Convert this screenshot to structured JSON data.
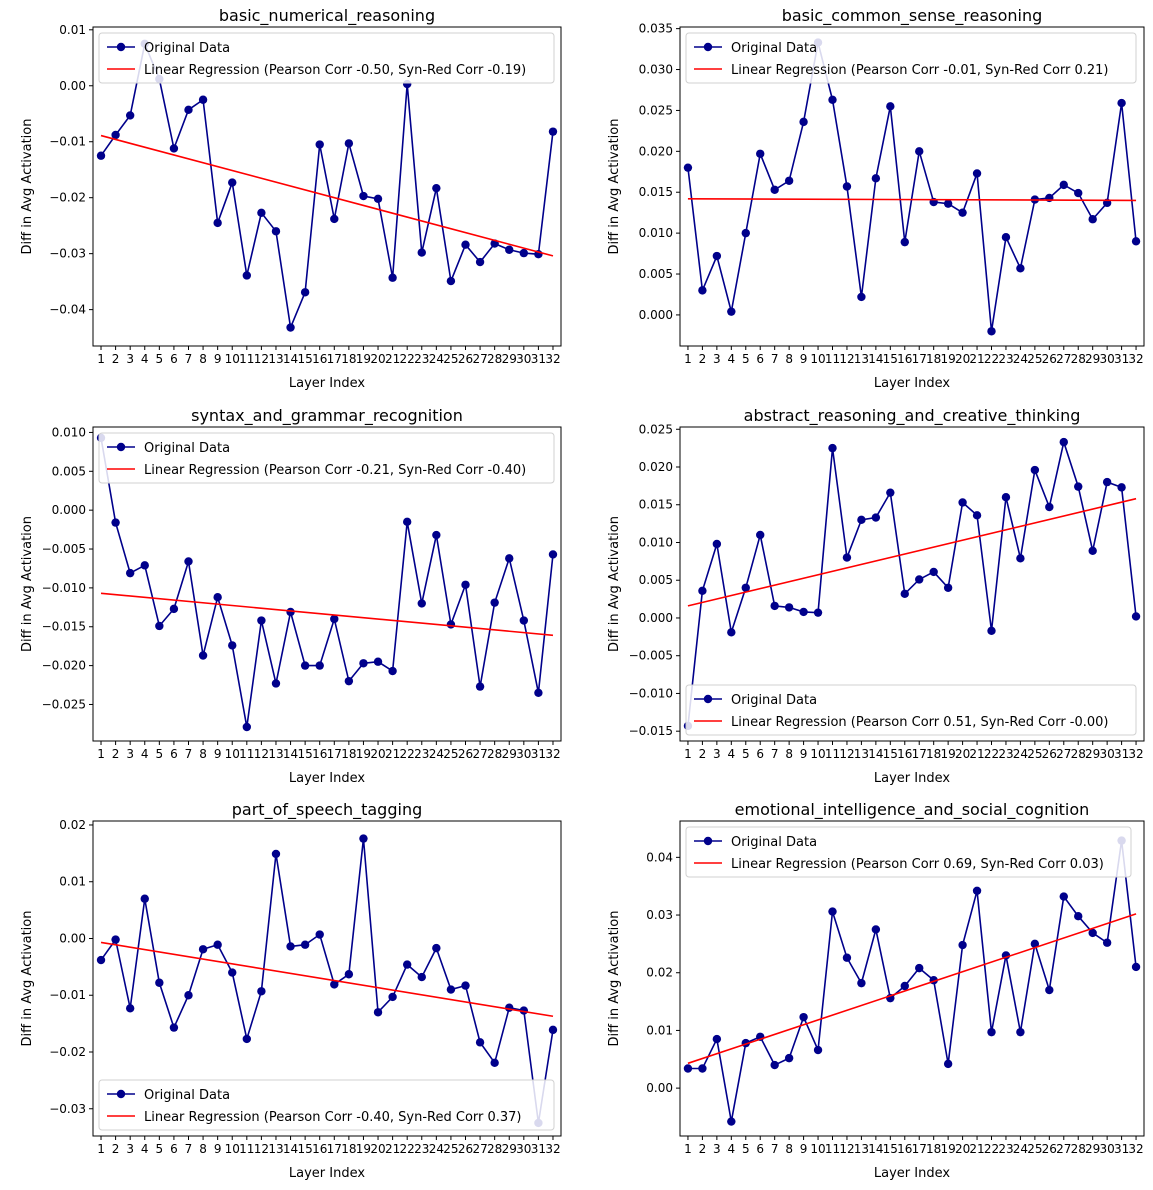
{
  "chart_data": [
    {
      "type": "line",
      "title": "basic_numerical_reasoning",
      "xlabel": "Layer Index",
      "ylabel": "Diff in Avg Activation",
      "x": [
        1,
        2,
        3,
        4,
        5,
        6,
        7,
        8,
        9,
        10,
        11,
        12,
        13,
        14,
        15,
        16,
        17,
        18,
        19,
        20,
        21,
        22,
        23,
        24,
        25,
        26,
        27,
        28,
        29,
        30,
        31,
        32
      ],
      "xtick_labels": [
        "1",
        "2",
        "3",
        "4",
        "5",
        "6",
        "7",
        "8",
        "9",
        "10",
        "11",
        "12",
        "13",
        "14",
        "15",
        "16",
        "17",
        "18",
        "19",
        "20",
        "21",
        "22",
        "23",
        "24",
        "25",
        "26",
        "27",
        "28",
        "29",
        "30",
        "31",
        "32"
      ],
      "ylim": [
        -0.0465,
        0.0105
      ],
      "yticks": [
        -0.04,
        -0.03,
        -0.02,
        -0.01,
        0.0,
        0.01
      ],
      "ytick_labels": [
        "−0.04",
        "−0.03",
        "−0.02",
        "−0.01",
        "0.00",
        "0.01"
      ],
      "legend": "upper-left",
      "series": [
        {
          "name": "Original Data",
          "color": "#00008b",
          "marker": "circle",
          "values": [
            -0.0125,
            -0.0088,
            -0.0053,
            0.0075,
            0.0012,
            -0.0112,
            -0.0043,
            -0.0025,
            -0.0245,
            -0.0173,
            -0.0339,
            -0.0227,
            -0.026,
            -0.0432,
            -0.0369,
            -0.0105,
            -0.0238,
            -0.0103,
            -0.0197,
            -0.0202,
            -0.0343,
            0.0003,
            -0.0298,
            -0.0183,
            -0.0349,
            -0.0284,
            -0.0315,
            -0.0282,
            -0.0293,
            -0.0299,
            -0.0301,
            -0.0082
          ]
        },
        {
          "name": "Linear Regression (Pearson Corr -0.50, Syn-Red Corr -0.19)",
          "color": "#ff0000",
          "line": [
            -0.0089,
            -0.0304
          ]
        }
      ]
    },
    {
      "type": "line",
      "title": "basic_common_sense_reasoning",
      "xlabel": "Layer Index",
      "ylabel": "Diff in Avg Activation",
      "x": [
        1,
        2,
        3,
        4,
        5,
        6,
        7,
        8,
        9,
        10,
        11,
        12,
        13,
        14,
        15,
        16,
        17,
        18,
        19,
        20,
        21,
        22,
        23,
        24,
        25,
        26,
        27,
        28,
        29,
        30,
        31,
        32
      ],
      "xtick_labels": [
        "1",
        "2",
        "3",
        "4",
        "5",
        "6",
        "7",
        "8",
        "9",
        "10",
        "11",
        "12",
        "13",
        "14",
        "15",
        "16",
        "17",
        "18",
        "19",
        "20",
        "21",
        "22",
        "23",
        "24",
        "25",
        "26",
        "27",
        "28",
        "29",
        "30",
        "31",
        "32"
      ],
      "ylim": [
        -0.0038,
        0.0352
      ],
      "yticks": [
        0.0,
        0.005,
        0.01,
        0.015,
        0.02,
        0.025,
        0.03,
        0.035
      ],
      "ytick_labels": [
        "0.000",
        "0.005",
        "0.010",
        "0.015",
        "0.020",
        "0.025",
        "0.030",
        "0.035"
      ],
      "legend": "upper-left",
      "series": [
        {
          "name": "Original Data",
          "color": "#00008b",
          "marker": "circle",
          "values": [
            0.018,
            0.003,
            0.0072,
            0.0004,
            0.01,
            0.0197,
            0.0153,
            0.0164,
            0.0236,
            0.0333,
            0.0263,
            0.0157,
            0.0022,
            0.0167,
            0.0255,
            0.0089,
            0.02,
            0.0138,
            0.0136,
            0.0125,
            0.0173,
            -0.002,
            0.0095,
            0.0057,
            0.0141,
            0.0143,
            0.0159,
            0.0149,
            0.0117,
            0.0137,
            0.0259,
            0.009
          ]
        },
        {
          "name": "Linear Regression (Pearson Corr -0.01, Syn-Red Corr 0.21)",
          "color": "#ff0000",
          "line": [
            0.0142,
            0.014
          ]
        }
      ]
    },
    {
      "type": "line",
      "title": "syntax_and_grammar_recognition",
      "xlabel": "Layer Index",
      "ylabel": "Diff in Avg Activation",
      "x": [
        1,
        2,
        3,
        4,
        5,
        6,
        7,
        8,
        9,
        10,
        11,
        12,
        13,
        14,
        15,
        16,
        17,
        18,
        19,
        20,
        21,
        22,
        23,
        24,
        25,
        26,
        27,
        28,
        29,
        30,
        31,
        32
      ],
      "xtick_labels": [
        "1",
        "2",
        "3",
        "4",
        "5",
        "6",
        "7",
        "8",
        "9",
        "10",
        "11",
        "12",
        "13",
        "14",
        "15",
        "16",
        "17",
        "18",
        "19",
        "20",
        "21",
        "22",
        "23",
        "24",
        "25",
        "26",
        "27",
        "28",
        "29",
        "30",
        "31",
        "32"
      ],
      "ylim": [
        -0.0297,
        0.0107
      ],
      "yticks": [
        -0.025,
        -0.02,
        -0.015,
        -0.01,
        -0.005,
        0.0,
        0.005,
        0.01
      ],
      "ytick_labels": [
        "−0.025",
        "−0.020",
        "−0.015",
        "−0.010",
        "−0.005",
        "0.000",
        "0.005",
        "0.010"
      ],
      "legend": "upper-left",
      "series": [
        {
          "name": "Original Data",
          "color": "#00008b",
          "marker": "circle",
          "values": [
            0.0093,
            -0.0016,
            -0.0081,
            -0.0071,
            -0.0149,
            -0.0127,
            -0.0066,
            -0.0187,
            -0.0112,
            -0.0174,
            -0.0279,
            -0.0142,
            -0.0223,
            -0.0131,
            -0.02,
            -0.02,
            -0.014,
            -0.022,
            -0.0197,
            -0.0195,
            -0.0207,
            -0.0015,
            -0.012,
            -0.0032,
            -0.0147,
            -0.0096,
            -0.0227,
            -0.0119,
            -0.0062,
            -0.0142,
            -0.0235,
            -0.0057
          ]
        },
        {
          "name": "Linear Regression (Pearson Corr -0.21, Syn-Red Corr -0.40)",
          "color": "#ff0000",
          "line": [
            -0.0107,
            -0.0161
          ]
        }
      ]
    },
    {
      "type": "line",
      "title": "abstract_reasoning_and_creative_thinking",
      "xlabel": "Layer Index",
      "ylabel": "Diff in Avg Activation",
      "x": [
        1,
        2,
        3,
        4,
        5,
        6,
        7,
        8,
        9,
        10,
        11,
        12,
        13,
        14,
        15,
        16,
        17,
        18,
        19,
        20,
        21,
        22,
        23,
        24,
        25,
        26,
        27,
        28,
        29,
        30,
        31,
        32
      ],
      "xtick_labels": [
        "1",
        "2",
        "3",
        "4",
        "5",
        "6",
        "7",
        "8",
        "9",
        "10",
        "11",
        "12",
        "13",
        "14",
        "15",
        "16",
        "17",
        "18",
        "19",
        "20",
        "21",
        "22",
        "23",
        "24",
        "25",
        "26",
        "27",
        "28",
        "29",
        "30",
        "31",
        "32"
      ],
      "ylim": [
        -0.0163,
        0.0253
      ],
      "yticks": [
        -0.015,
        -0.01,
        -0.005,
        0.0,
        0.005,
        0.01,
        0.015,
        0.02,
        0.025
      ],
      "ytick_labels": [
        "−0.015",
        "−0.010",
        "−0.005",
        "0.000",
        "0.005",
        "0.010",
        "0.015",
        "0.020",
        "0.025"
      ],
      "legend": "lower-left",
      "series": [
        {
          "name": "Original Data",
          "color": "#00008b",
          "marker": "circle",
          "values": [
            -0.0143,
            0.0036,
            0.0098,
            -0.0019,
            0.004,
            0.011,
            0.0016,
            0.0014,
            0.0008,
            0.0007,
            0.0225,
            0.008,
            0.013,
            0.0133,
            0.0166,
            0.0032,
            0.0051,
            0.0061,
            0.004,
            0.0153,
            0.0136,
            -0.0017,
            0.016,
            0.0079,
            0.0196,
            0.0147,
            0.0233,
            0.0174,
            0.0089,
            0.018,
            0.0173,
            0.0002
          ]
        },
        {
          "name": "Linear Regression (Pearson Corr 0.51, Syn-Red Corr -0.00)",
          "color": "#ff0000",
          "line": [
            0.0016,
            0.0158
          ]
        }
      ]
    },
    {
      "type": "line",
      "title": "part_of_speech_tagging",
      "xlabel": "Layer Index",
      "ylabel": "Diff in Avg Activation",
      "x": [
        1,
        2,
        3,
        4,
        5,
        6,
        7,
        8,
        9,
        10,
        11,
        12,
        13,
        14,
        15,
        16,
        17,
        18,
        19,
        20,
        21,
        22,
        23,
        24,
        25,
        26,
        27,
        28,
        29,
        30,
        31,
        32
      ],
      "xtick_labels": [
        "1",
        "2",
        "3",
        "4",
        "5",
        "6",
        "7",
        "8",
        "9",
        "10",
        "11",
        "12",
        "13",
        "14",
        "15",
        "16",
        "17",
        "18",
        "19",
        "20",
        "21",
        "22",
        "23",
        "24",
        "25",
        "26",
        "27",
        "28",
        "29",
        "30",
        "31",
        "32"
      ],
      "ylim": [
        -0.0348,
        0.0207
      ],
      "yticks": [
        -0.03,
        -0.02,
        -0.01,
        0.0,
        0.01,
        0.02
      ],
      "ytick_labels": [
        "−0.03",
        "−0.02",
        "−0.01",
        "0.00",
        "0.01",
        "0.02"
      ],
      "legend": "lower-left",
      "series": [
        {
          "name": "Original Data",
          "color": "#00008b",
          "marker": "circle",
          "values": [
            -0.0038,
            -0.0002,
            -0.0123,
            0.007,
            -0.0078,
            -0.0157,
            -0.01,
            -0.0019,
            -0.0011,
            -0.006,
            -0.0177,
            -0.0093,
            0.0149,
            -0.0014,
            -0.0011,
            0.0007,
            -0.0081,
            -0.0063,
            0.0176,
            -0.013,
            -0.0103,
            -0.0046,
            -0.0068,
            -0.0017,
            -0.009,
            -0.0083,
            -0.0183,
            -0.0219,
            -0.0122,
            -0.0127,
            -0.0325,
            -0.0161
          ]
        },
        {
          "name": "Linear Regression (Pearson Corr -0.40, Syn-Red Corr 0.37)",
          "color": "#ff0000",
          "line": [
            -0.0007,
            -0.0137
          ]
        }
      ]
    },
    {
      "type": "line",
      "title": "emotional_intelligence_and_social_cognition",
      "xlabel": "Layer Index",
      "ylabel": "Diff in Avg Activation",
      "x": [
        1,
        2,
        3,
        4,
        5,
        6,
        7,
        8,
        9,
        10,
        11,
        12,
        13,
        14,
        15,
        16,
        17,
        18,
        19,
        20,
        21,
        22,
        23,
        24,
        25,
        26,
        27,
        28,
        29,
        30,
        31,
        32
      ],
      "xtick_labels": [
        "1",
        "2",
        "3",
        "4",
        "5",
        "6",
        "7",
        "8",
        "9",
        "10",
        "11",
        "12",
        "13",
        "14",
        "15",
        "16",
        "17",
        "18",
        "19",
        "20",
        "21",
        "22",
        "23",
        "24",
        "25",
        "26",
        "27",
        "28",
        "29",
        "30",
        "31",
        "32"
      ],
      "ylim": [
        -0.0083,
        0.0463
      ],
      "yticks": [
        0.0,
        0.01,
        0.02,
        0.03,
        0.04
      ],
      "ytick_labels": [
        "0.00",
        "0.01",
        "0.02",
        "0.03",
        "0.04"
      ],
      "legend": "upper-left",
      "series": [
        {
          "name": "Original Data",
          "color": "#00008b",
          "marker": "circle",
          "values": [
            0.0034,
            0.0034,
            0.0085,
            -0.0058,
            0.0078,
            0.0089,
            0.004,
            0.0052,
            0.0123,
            0.0066,
            0.0306,
            0.0226,
            0.0182,
            0.0275,
            0.0156,
            0.0177,
            0.0208,
            0.0187,
            0.0042,
            0.0248,
            0.0342,
            0.0097,
            0.023,
            0.0097,
            0.025,
            0.017,
            0.0332,
            0.0298,
            0.0269,
            0.0252,
            0.0429,
            0.021
          ]
        },
        {
          "name": "Linear Regression (Pearson Corr 0.69, Syn-Red Corr 0.03)",
          "color": "#ff0000",
          "line": [
            0.0043,
            0.0302
          ]
        }
      ]
    }
  ]
}
